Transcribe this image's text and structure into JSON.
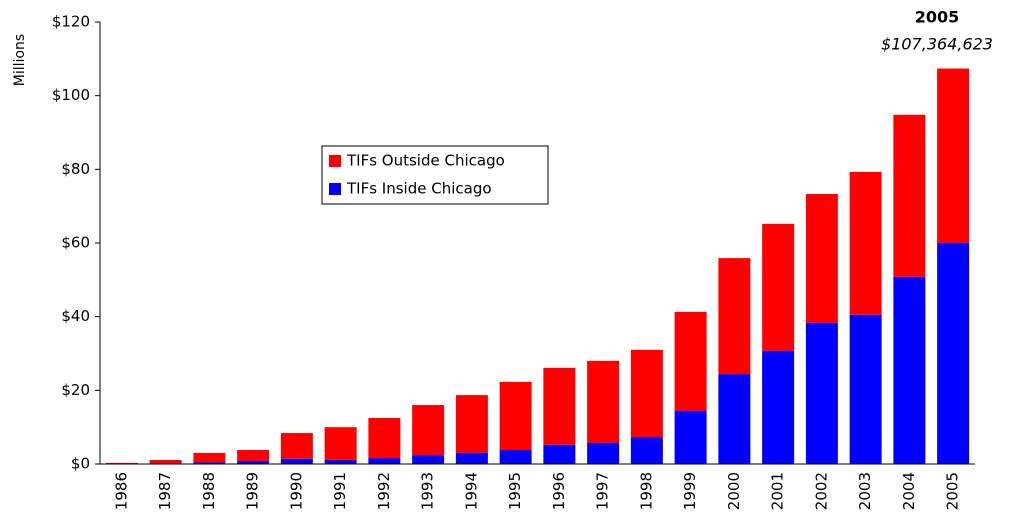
{
  "chart_data": {
    "type": "stacked_bar",
    "y_axis_label": "Millions",
    "annotation_title": "2005",
    "annotation_value": "$107,364,623",
    "categories": [
      "1986",
      "1987",
      "1988",
      "1989",
      "1990",
      "1991",
      "1992",
      "1993",
      "1994",
      "1995",
      "1996",
      "1997",
      "1998",
      "1999",
      "2000",
      "2001",
      "2002",
      "2003",
      "2004",
      "2005"
    ],
    "series": [
      {
        "name": "TIFs Outside Chicago",
        "color": "#ff0000",
        "values": [
          0.2,
          0.9,
          2.5,
          3.0,
          7.0,
          8.9,
          10.9,
          13.6,
          15.7,
          18.5,
          20.9,
          22.3,
          23.7,
          26.9,
          31.5,
          34.5,
          35.0,
          38.8,
          44.0,
          47.36
        ]
      },
      {
        "name": "TIFs Inside Chicago",
        "color": "#0000ff",
        "values": [
          0.1,
          0.2,
          0.5,
          0.8,
          1.4,
          1.1,
          1.6,
          2.4,
          3.0,
          3.8,
          5.2,
          5.7,
          7.3,
          14.4,
          24.4,
          30.7,
          38.3,
          40.5,
          50.8,
          60.0
        ]
      }
    ],
    "ylim": [
      0,
      120
    ],
    "yticks": [
      {
        "value": 0,
        "label": "$0"
      },
      {
        "value": 20,
        "label": "$20"
      },
      {
        "value": 40,
        "label": "$40"
      },
      {
        "value": 60,
        "label": "$60"
      },
      {
        "value": 80,
        "label": "$80"
      },
      {
        "value": 100,
        "label": "$100"
      },
      {
        "value": 120,
        "label": "$120"
      }
    ],
    "grid": false
  }
}
